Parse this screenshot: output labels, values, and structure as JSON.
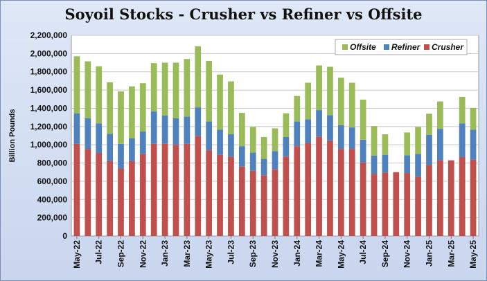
{
  "chart_data": {
    "type": "bar",
    "stacked": true,
    "title": "Soyoil  Stocks - Crusher vs Refiner vs Offsite",
    "ylabel": "Billion Pounds",
    "xlabel": "",
    "ylim": [
      0,
      2200000
    ],
    "ytick_step": 200000,
    "ytick_labels": [
      "0",
      "200,000",
      "400,000",
      "600,000",
      "800,000",
      "1,000,000",
      "1,200,000",
      "1,400,000",
      "1,600,000",
      "1,800,000",
      "2,000,000",
      "2,200,000"
    ],
    "grid": "horizontal",
    "legend_position": "top-right",
    "categories": [
      "May-22",
      "Jun-22",
      "Jul-22",
      "Aug-22",
      "Sep-22",
      "Oct-22",
      "Nov-22",
      "Dec-22",
      "Jan-23",
      "Feb-23",
      "Mar-23",
      "Apr-23",
      "May-23",
      "Jun-23",
      "Jul-23",
      "Aug-23",
      "Sep-23",
      "Oct-23",
      "Nov-23",
      "Dec-23",
      "Jan-24",
      "Feb-24",
      "Mar-24",
      "Apr-24",
      "May-24",
      "Jun-24",
      "Jul-24",
      "Aug-24",
      "Sep-24",
      "Oct-24",
      "Nov-24",
      "Dec-24",
      "Jan-25",
      "Feb-25",
      "Mar-25",
      "Apr-25",
      "May-25"
    ],
    "x_tick_labels": [
      "May-22",
      "Jul-22",
      "Sep-22",
      "Nov-22",
      "Jan-23",
      "Mar-23",
      "May-23",
      "Jul-23",
      "Sep-23",
      "Nov-23",
      "Jan-24",
      "Mar-24",
      "May-24",
      "Jul-24",
      "Sep-24",
      "Nov-24",
      "Jan-25",
      "Mar-25",
      "May-25"
    ],
    "series": [
      {
        "name": "Crusher",
        "color": "#c0504d",
        "values": [
          1010000,
          955000,
          910000,
          820000,
          740000,
          820000,
          900000,
          1010000,
          1010000,
          1000000,
          1010000,
          1095000,
          940000,
          890000,
          870000,
          760000,
          715000,
          665000,
          730000,
          870000,
          985000,
          1020000,
          1090000,
          1045000,
          955000,
          955000,
          805000,
          680000,
          695000,
          700000,
          690000,
          650000,
          780000,
          830000,
          830000,
          865000,
          835000
        ]
      },
      {
        "name": "Refiner",
        "color": "#4f81bd",
        "values": [
          335000,
          335000,
          325000,
          300000,
          270000,
          250000,
          245000,
          355000,
          310000,
          290000,
          300000,
          315000,
          315000,
          275000,
          245000,
          225000,
          200000,
          180000,
          200000,
          215000,
          270000,
          260000,
          290000,
          280000,
          260000,
          235000,
          250000,
          200000,
          195000,
          0,
          195000,
          250000,
          330000,
          345000,
          0,
          370000,
          330000
        ]
      },
      {
        "name": "Offsite",
        "color": "#9bbb59",
        "values": [
          625000,
          625000,
          625000,
          565000,
          575000,
          570000,
          530000,
          530000,
          580000,
          610000,
          630000,
          670000,
          665000,
          605000,
          580000,
          365000,
          280000,
          240000,
          250000,
          260000,
          280000,
          400000,
          490000,
          530000,
          520000,
          490000,
          440000,
          325000,
          225000,
          0,
          250000,
          295000,
          230000,
          300000,
          0,
          290000,
          240000
        ]
      }
    ]
  }
}
